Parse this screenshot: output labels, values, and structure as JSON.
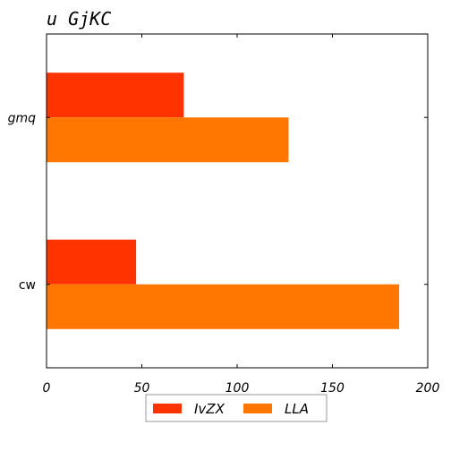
{
  "chart_data": {
    "type": "bar",
    "orientation": "horizontal",
    "title": "u GjKC",
    "xlabel": "",
    "ylabel": "",
    "categories": [
      "gmq",
      "cw"
    ],
    "category_styles": [
      "italic",
      "normal"
    ],
    "xlim": [
      0,
      200
    ],
    "xticks": [
      0,
      50,
      100,
      150,
      200
    ],
    "grid": false,
    "legend_position": "bottom-center",
    "series": [
      {
        "name": "IvZX",
        "values": [
          72,
          47
        ],
        "color": "#ff3300"
      },
      {
        "name": "LLA",
        "values": [
          127,
          185
        ],
        "color": "#ff7700"
      }
    ]
  }
}
